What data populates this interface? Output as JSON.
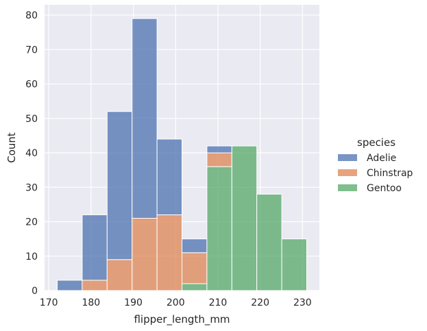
{
  "chart_data": {
    "type": "bar",
    "stacked": true,
    "histogram": true,
    "xlabel": "flipper_length_mm",
    "ylabel": "Count",
    "xlim": [
      169,
      234
    ],
    "ylim": [
      0,
      83
    ],
    "xticks": [
      170,
      180,
      190,
      200,
      210,
      220,
      230
    ],
    "yticks": [
      0,
      10,
      20,
      30,
      40,
      50,
      60,
      70,
      80
    ],
    "grid": true,
    "bin_edges": [
      172,
      177.9,
      183.8,
      189.7,
      195.6,
      201.5,
      207.4,
      213.3,
      219.2,
      225.1,
      231
    ],
    "series": [
      {
        "name": "Gentoo",
        "color": "#55a868",
        "values": [
          0,
          0,
          0,
          0,
          0,
          2,
          36,
          42,
          28,
          15
        ]
      },
      {
        "name": "Chinstrap",
        "color": "#dd8452",
        "values": [
          0,
          3,
          9,
          21,
          22,
          9,
          4,
          0,
          0,
          0
        ]
      },
      {
        "name": "Adelie",
        "color": "#4c72b0",
        "values": [
          3,
          19,
          43,
          58,
          22,
          4,
          2,
          0,
          0,
          0
        ]
      }
    ],
    "legend": {
      "title": "species",
      "position": "right",
      "entries": [
        "Adelie",
        "Chinstrap",
        "Gentoo"
      ]
    }
  }
}
